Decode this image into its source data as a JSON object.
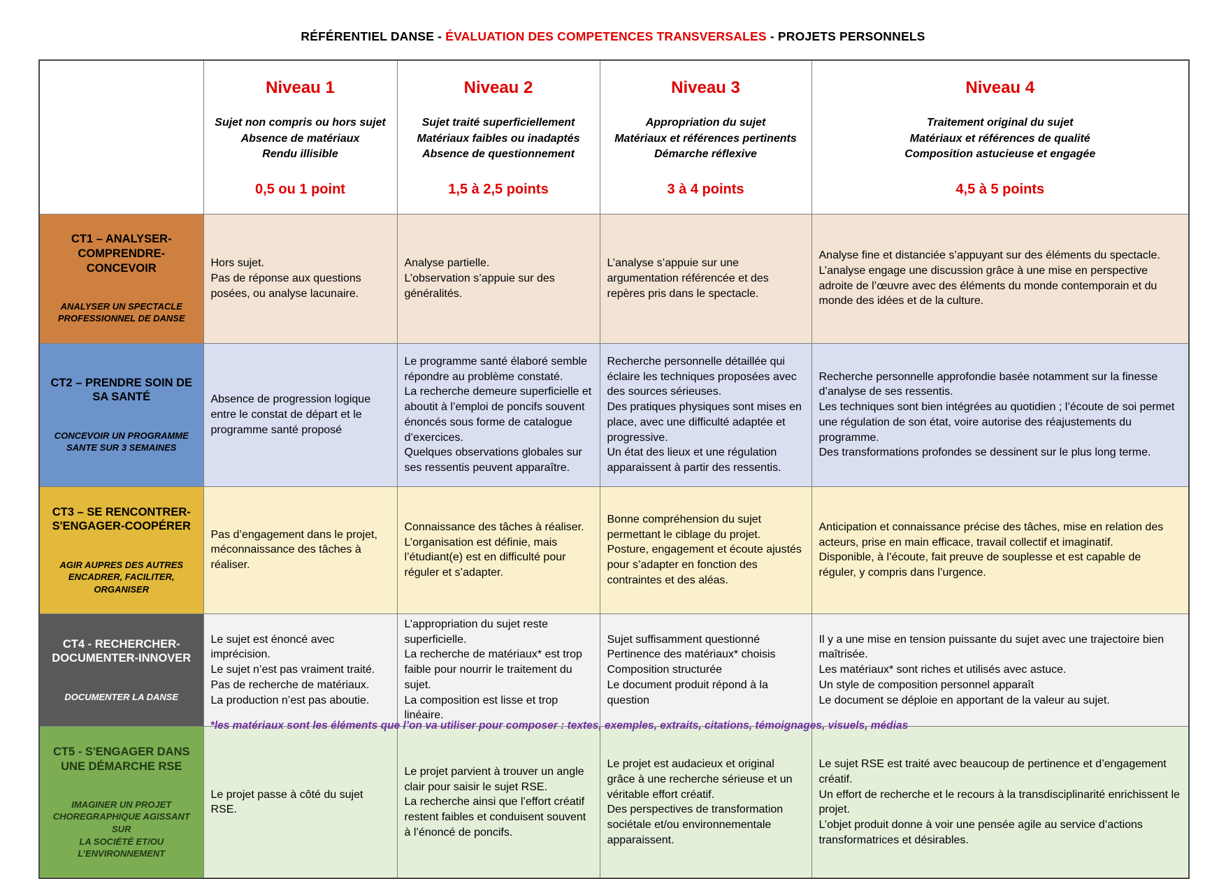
{
  "page": {
    "title_part1": "RÉFÉRENTIEL DANSE - ",
    "title_accent": "ÉVALUATION DES COMPETENCES TRANSVERSALES",
    "title_part3": " - PROJETS PERSONNELS",
    "footnote": "*les matériaux sont les éléments que l’on va utiliser pour composer : textes, exemples, extraits, citations, témoignages, visuels, médias"
  },
  "colors": {
    "accent_red": "#E00000",
    "footnote_purple": "#7030A0",
    "border_gray": "#7F7F7F"
  },
  "header": {
    "levels": [
      {
        "name": "Niveau 1",
        "descriptors": [
          "Sujet non compris ou hors sujet",
          "Absence de matériaux",
          "Rendu illisible"
        ],
        "points": "0,5 ou 1 point"
      },
      {
        "name": "Niveau 2",
        "descriptors": [
          "Sujet traité superficiellement",
          "Matériaux faibles ou inadaptés",
          "Absence de questionnement"
        ],
        "points": "1,5 à 2,5 points"
      },
      {
        "name": "Niveau 3",
        "descriptors": [
          "Appropriation du sujet",
          "Matériaux et références pertinents",
          "Démarche réflexive"
        ],
        "points": "3 à 4 points"
      },
      {
        "name": "Niveau 4",
        "descriptors": [
          "Traitement original du sujet",
          "Matériaux et références de qualité",
          "Composition astucieuse et engagée"
        ],
        "points": "4,5 à 5 points"
      }
    ]
  },
  "rows": [
    {
      "id": "ct1",
      "title": "CT1 – ANALYSER-COMPRENDRE-CONCEVOIR",
      "subtitle": "ANALYSER UN SPECTACLE\nPROFESSIONNEL DE DANSE",
      "header_bg": "#CE8040",
      "header_fg": "#000000",
      "cell_bg": "#F2E3D5",
      "cells": [
        [
          "Hors sujet.",
          "Pas de réponse aux questions posées, ou analyse lacunaire."
        ],
        [
          "Analyse partielle.",
          "L’observation s’appuie sur des généralités."
        ],
        [
          "L’analyse s’appuie sur une argumentation référencée et des repères pris dans le spectacle."
        ],
        [
          "Analyse fine et distanciée s’appuyant sur des éléments du spectacle.",
          "L’analyse engage une discussion grâce à une mise en perspective adroite de l’œuvre avec des éléments du monde contemporain et du monde des idées et de la culture."
        ]
      ]
    },
    {
      "id": "ct2",
      "title": "CT2 – PRENDRE SOIN DE SA SANTÉ",
      "subtitle": "CONCEVOIR UN PROGRAMME\nSANTE SUR 3 SEMAINES",
      "header_bg": "#6D93CB",
      "header_fg": "#000000",
      "cell_bg": "#D9DEF1",
      "cells": [
        [
          "Absence de progression logique entre le constat de départ et le programme santé proposé"
        ],
        [
          "Le programme santé élaboré semble répondre au problème constaté.",
          "La recherche demeure superficielle et aboutit à l’emploi de poncifs souvent énoncés sous forme de catalogue d’exercices.",
          "Quelques observations globales sur ses ressentis peuvent apparaître."
        ],
        [
          "Recherche personnelle détaillée qui éclaire les techniques proposées avec des sources sérieuses.",
          "Des pratiques physiques sont mises en place, avec une difficulté adaptée et progressive.",
          "Un état des lieux et une régulation apparaissent à partir des ressentis."
        ],
        [
          "Recherche personnelle approfondie basée notamment sur la finesse d’analyse de ses ressentis.",
          "Les techniques sont bien intégrées au quotidien ; l’écoute de soi permet une régulation de son état, voire autorise des réajustements du programme.",
          "Des transformations profondes se dessinent sur le plus long terme."
        ]
      ]
    },
    {
      "id": "ct3",
      "title": "CT3 – SE RENCONTRER-S'ENGAGER-COOPÉRER",
      "subtitle": "AGIR AUPRES DES AUTRES\nENCADRER, FACILITER, ORGANISER",
      "header_bg": "#E2B93B",
      "header_fg": "#000000",
      "cell_bg": "#FAF1CC",
      "cells": [
        [
          "Pas d’engagement dans le projet, méconnaissance des tâches à réaliser."
        ],
        [
          "Connaissance des tâches à réaliser.",
          "L’organisation est définie, mais l’étudiant(e) est en difficulté pour réguler et s’adapter."
        ],
        [
          "Bonne compréhension du sujet permettant le ciblage du projet.",
          "Posture, engagement et écoute ajustés pour s’adapter en fonction des contraintes et des aléas."
        ],
        [
          "Anticipation et connaissance précise des tâches, mise en relation des acteurs, prise en main efficace, travail collectif et imaginatif.",
          "Disponible, à l’écoute, fait preuve de souplesse et est capable de réguler, y compris dans l’urgence."
        ]
      ]
    },
    {
      "id": "ct4",
      "title": "CT4 - RECHERCHER-DOCUMENTER-INNOVER",
      "subtitle": "DOCUMENTER LA DANSE",
      "header_bg": "#595959",
      "header_fg": "#FFFFFF",
      "cell_bg": "#F2F2F2",
      "cells": [
        [
          "Le sujet est énoncé avec imprécision.",
          "Le sujet n’est pas vraiment traité.",
          "Pas de recherche de matériaux.",
          "La production n’est pas aboutie."
        ],
        [
          "L’appropriation du sujet reste superficielle.",
          "La recherche de matériaux* est trop faible pour nourrir le traitement du sujet.",
          "La composition est lisse et trop linéaire."
        ],
        [
          "Sujet suffisamment questionné",
          "Pertinence des matériaux* choisis",
          "Composition structurée",
          "Le document produit répond à la question"
        ],
        [
          "Il y a une mise en tension puissante du sujet avec une trajectoire bien maîtrisée.",
          "Les matériaux* sont riches et utilisés avec astuce.",
          "Un style de composition personnel apparaît",
          "Le document se déploie en apportant de la valeur au sujet."
        ]
      ]
    },
    {
      "id": "ct5",
      "title": "CT5 - S'ENGAGER DANS UNE DÉMARCHE RSE",
      "subtitle": "IMAGINER UN PROJET\nCHOREGRAPHIQUE AGISSANT SUR\nLA SOCIÉTÉ ET/OU\nL’ENVIRONNEMENT",
      "header_bg": "#7CAD53",
      "header_fg": "#1F3813",
      "cell_bg": "#E4EFDA",
      "cells": [
        [
          "Le projet passe à côté du sujet RSE."
        ],
        [
          "Le projet parvient à trouver un angle clair pour saisir le sujet RSE.",
          "La recherche ainsi que l’effort créatif restent faibles et conduisent souvent à l’énoncé de poncifs."
        ],
        [
          "Le projet est audacieux et original grâce à une recherche sérieuse et un véritable effort créatif.",
          "Des perspectives de transformation sociétale et/ou environnementale apparaissent."
        ],
        [
          "Le sujet RSE est traité avec beaucoup de pertinence et d’engagement créatif.",
          "Un effort de recherche et le recours à la transdisciplinarité enrichissent le projet.",
          "L’objet produit donne à voir une pensée agile au service d’actions transformatrices et désirables."
        ]
      ]
    }
  ]
}
